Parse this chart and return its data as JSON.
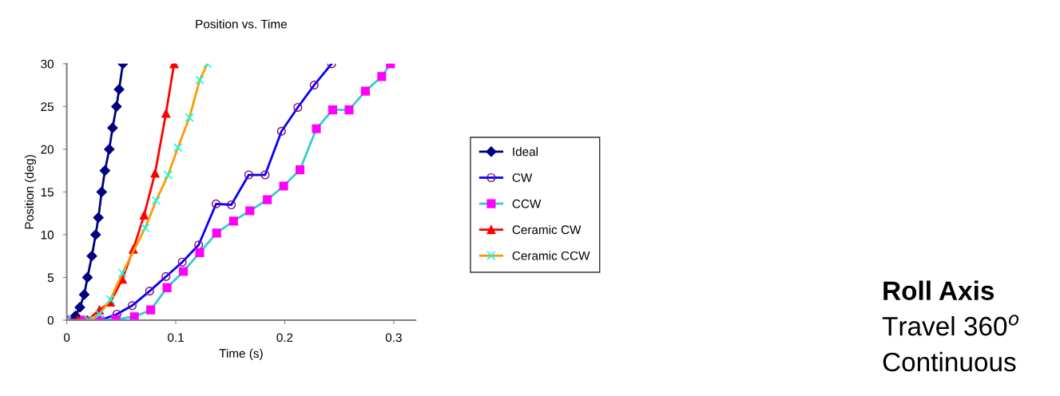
{
  "chart_data": {
    "type": "line",
    "title": "Position vs. Time",
    "xlabel": "Time (s)",
    "ylabel": "Position (deg)",
    "xlim": [
      0,
      0.32
    ],
    "xticks": [
      0,
      0.1,
      0.2,
      0.3
    ],
    "ylim": [
      0,
      30
    ],
    "yticks": [
      0,
      5,
      10,
      15,
      20,
      25,
      30
    ],
    "grid": false,
    "legend": "right",
    "series": [
      {
        "name": "Ideal",
        "color": "#000080",
        "marker": "diamond",
        "x": [
          0,
          0.004,
          0.008,
          0.012,
          0.016,
          0.019,
          0.023,
          0.0265,
          0.029,
          0.032,
          0.035,
          0.039,
          0.042,
          0.0456,
          0.048,
          0.0515
        ],
        "values": [
          0,
          0,
          0.5,
          1.5,
          3,
          5,
          7.5,
          10,
          12,
          15,
          17.5,
          20,
          22.5,
          25,
          27,
          30
        ]
      },
      {
        "name": "CW",
        "color": "#0000ff",
        "marker": "circle",
        "x": [
          0,
          0.015,
          0.031,
          0.046,
          0.06,
          0.076,
          0.091,
          0.106,
          0.121,
          0.137,
          0.151,
          0.167,
          0.182,
          0.197,
          0.212,
          0.227,
          0.243
        ],
        "values": [
          0,
          0,
          0,
          0.7,
          1.7,
          3.4,
          5.1,
          6.8,
          8.8,
          13.6,
          13.5,
          17,
          17,
          22.1,
          24.9,
          27.5,
          30
        ]
      },
      {
        "name": "CCW",
        "color": "#33cccc",
        "marker": "square",
        "x": [
          0,
          0.016,
          0.03,
          0.045,
          0.062,
          0.077,
          0.092,
          0.107,
          0.122,
          0.1375,
          0.153,
          0.168,
          0.184,
          0.199,
          0.214,
          0.229,
          0.244,
          0.259,
          0.274,
          0.289,
          0.297
        ],
        "values": [
          0,
          0,
          0,
          0.1,
          0.4,
          1.2,
          3.8,
          5.7,
          7.9,
          10.2,
          11.6,
          12.8,
          14.1,
          15.7,
          17.6,
          22.4,
          24.6,
          24.6,
          26.8,
          28.5,
          30
        ]
      },
      {
        "name": "Ceramic CW",
        "color": "#ff0000",
        "marker": "triangle",
        "x": [
          0,
          0.01,
          0.019,
          0.03,
          0.04,
          0.051,
          0.061,
          0.071,
          0.081,
          0.091,
          0.0985
        ],
        "values": [
          0,
          0,
          0,
          1.2,
          2.1,
          4.8,
          8.3,
          12.3,
          17.2,
          24.2,
          30
        ]
      },
      {
        "name": "Ceramic CCW",
        "color": "#ff9900",
        "marker": "cross",
        "x": [
          0,
          0.02,
          0.03,
          0.04,
          0.051,
          0.072,
          0.082,
          0.093,
          0.102,
          0.1125,
          0.122,
          0.129
        ],
        "values": [
          0,
          0,
          0.7,
          2.4,
          5.5,
          10.8,
          14,
          17,
          20.2,
          23.7,
          28.1,
          30
        ]
      }
    ],
    "annotations": [
      "Roll Axis",
      "Travel 360$^{o}$",
      "Continuous"
    ]
  }
}
